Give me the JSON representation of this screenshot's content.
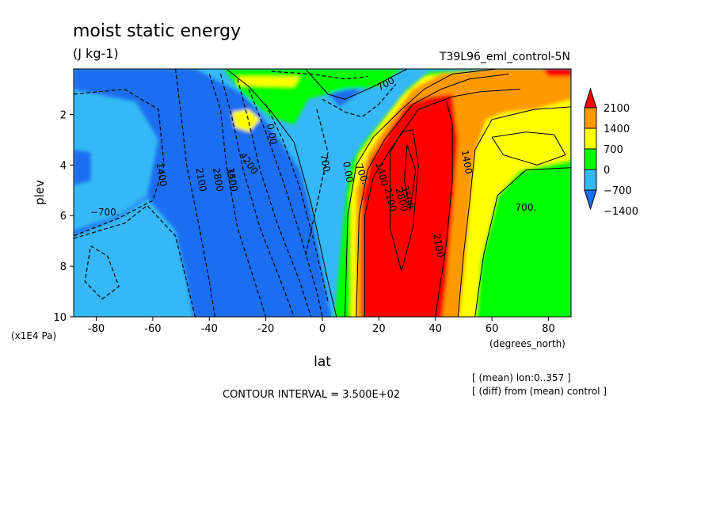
{
  "chart_data": {
    "type": "heatmap",
    "title": "moist static energy",
    "units": "(J kg-1)",
    "run_label": "T39L96_eml_control-5N",
    "xlabel": "lat",
    "xunits": "(degrees_north)",
    "ylabel": "plev",
    "yunits": "(x1E4 Pa)",
    "xlim": [
      -88,
      88
    ],
    "ylim": [
      10,
      0.2
    ],
    "x_ticks": [
      -80,
      -60,
      -40,
      -20,
      0,
      20,
      40,
      60,
      80
    ],
    "y_ticks": [
      2,
      4,
      6,
      8,
      10
    ],
    "colorbar": {
      "levels": [
        -1400,
        -700,
        0,
        700,
        1400,
        2100
      ],
      "labels": [
        "2100",
        "1400",
        "700",
        "0",
        "−700",
        "−1400"
      ],
      "colors": [
        "#1a6ef0",
        "#35b8f5",
        "#00ff00",
        "#ffff00",
        "#ff9900",
        "#ff0000"
      ],
      "extend": "both"
    },
    "contour_labels": [
      "700",
      "0.00",
      "1400",
      "2100",
      "2800",
      "3500",
      "4200",
      "1400",
      "−700.",
      "700.",
      "0.00",
      "700.",
      "1400",
      "2100",
      "2800",
      "3500",
      "2100",
      "1400",
      "700."
    ],
    "footer": {
      "contour_interval": "CONTOUR INTERVAL = 3.500E+02",
      "note1": "[ (mean) lon:0..357 ]",
      "note2": "[ (diff) from (mean) control ]"
    }
  }
}
